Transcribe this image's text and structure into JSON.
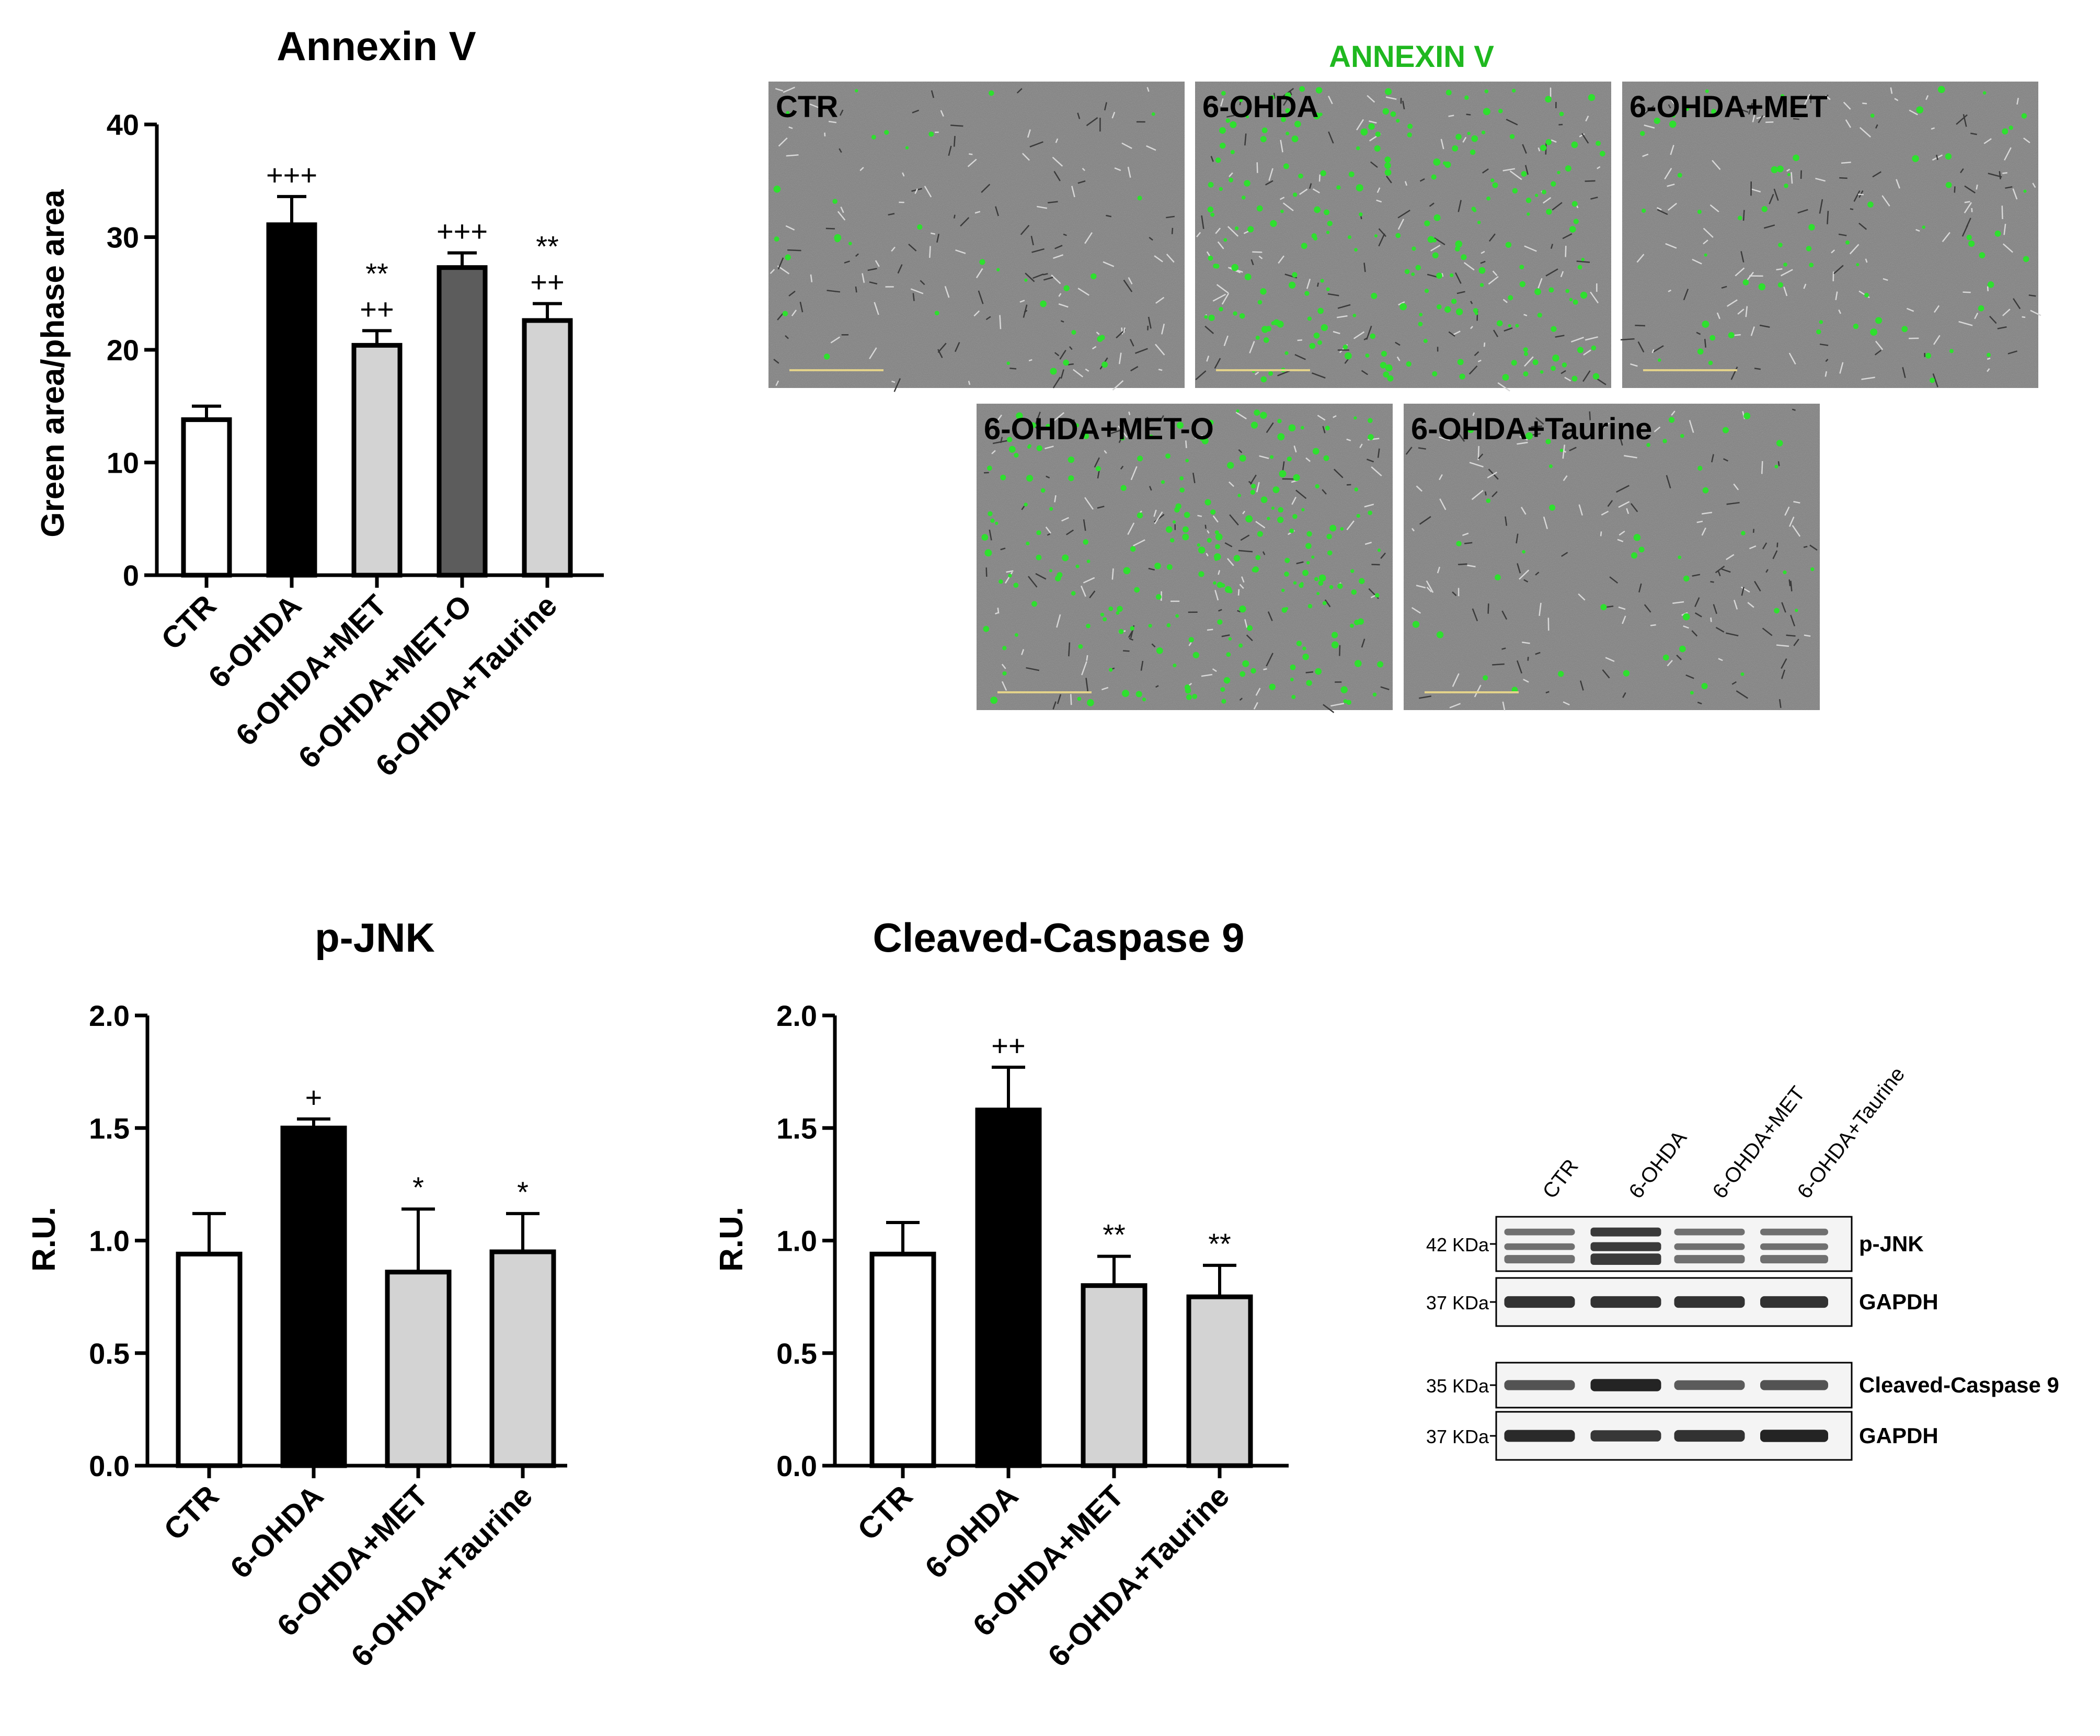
{
  "chart_data": [
    {
      "type": "bar",
      "title": "Annexin V",
      "ylabel": "Green area/phase area",
      "xlabel": "",
      "ylim": [
        0,
        40
      ],
      "yticks": [
        "0",
        "10",
        "20",
        "30",
        "40"
      ],
      "categories": [
        "CTR",
        "6-OHDA",
        "6-OHDA+MET",
        "6-OHDA+MET-O",
        "6-OHDA+Taurine"
      ],
      "values": [
        13.8,
        31.1,
        20.4,
        27.3,
        22.6
      ],
      "errors": [
        1.2,
        2.5,
        1.3,
        1.3,
        1.5
      ],
      "colors": [
        "#ffffff",
        "#000000",
        "#d3d3d3",
        "#5c5c5c",
        "#d3d3d3"
      ],
      "annotations": [
        [
          ""
        ],
        [
          "+++"
        ],
        [
          "**",
          "++"
        ],
        [
          "+++"
        ],
        [
          "**",
          "++"
        ]
      ]
    },
    {
      "type": "bar",
      "title": "p-JNK",
      "ylabel": "R.U.",
      "xlabel": "",
      "ylim": [
        0,
        2
      ],
      "yticks": [
        "0.0",
        "0.5",
        "1.0",
        "1.5",
        "2.0"
      ],
      "categories": [
        "CTR",
        "6-OHDA",
        "6-OHDA+MET",
        "6-OHDA+Taurine"
      ],
      "values": [
        0.94,
        1.5,
        0.86,
        0.95
      ],
      "errors": [
        0.18,
        0.04,
        0.28,
        0.17
      ],
      "colors": [
        "#ffffff",
        "#000000",
        "#d3d3d3",
        "#d3d3d3"
      ],
      "annotations": [
        [
          ""
        ],
        [
          "+"
        ],
        [
          "*"
        ],
        [
          "*"
        ]
      ]
    },
    {
      "type": "bar",
      "title": "Cleaved-Caspase 9",
      "ylabel": "R.U.",
      "xlabel": "",
      "ylim": [
        0,
        2
      ],
      "yticks": [
        "0.0",
        "0.5",
        "1.0",
        "1.5",
        "2.0"
      ],
      "categories": [
        "CTR",
        "6-OHDA",
        "6-OHDA+MET",
        "6-OHDA+Taurine"
      ],
      "values": [
        0.94,
        1.58,
        0.8,
        0.75
      ],
      "errors": [
        0.14,
        0.19,
        0.13,
        0.14
      ],
      "colors": [
        "#ffffff",
        "#000000",
        "#d3d3d3",
        "#d3d3d3"
      ],
      "annotations": [
        [
          ""
        ],
        [
          "++"
        ],
        [
          "**"
        ],
        [
          "**"
        ]
      ]
    }
  ],
  "microscopy": {
    "title": "ANNEXIN V",
    "title_color": "#1fb81f",
    "panels": [
      "CTR",
      "6-OHDA",
      "6-OHDA+MET",
      "6-OHDA+MET-O",
      "6-OHDA+Taurine"
    ],
    "green_cell_density": [
      0.15,
      1.0,
      0.3,
      1.0,
      0.2
    ]
  },
  "western_blot": {
    "lanes": [
      "CTR",
      "6-OHDA",
      "6-OHDA+MET",
      "6-OHDA+Taurine"
    ],
    "blots": [
      {
        "marker": "42 KDa",
        "protein": "p-JNK",
        "intensity": [
          0.55,
          0.95,
          0.55,
          0.55
        ]
      },
      {
        "marker": "37 KDa",
        "protein": "GAPDH",
        "intensity": [
          0.85,
          0.85,
          0.85,
          0.85
        ]
      },
      {
        "marker": "35 KDa",
        "protein": "Cleaved-Caspase 9",
        "intensity": [
          0.6,
          0.95,
          0.55,
          0.6
        ]
      },
      {
        "marker": "37 KDa",
        "protein": "GAPDH",
        "intensity": [
          0.9,
          0.8,
          0.85,
          0.95
        ]
      }
    ]
  }
}
